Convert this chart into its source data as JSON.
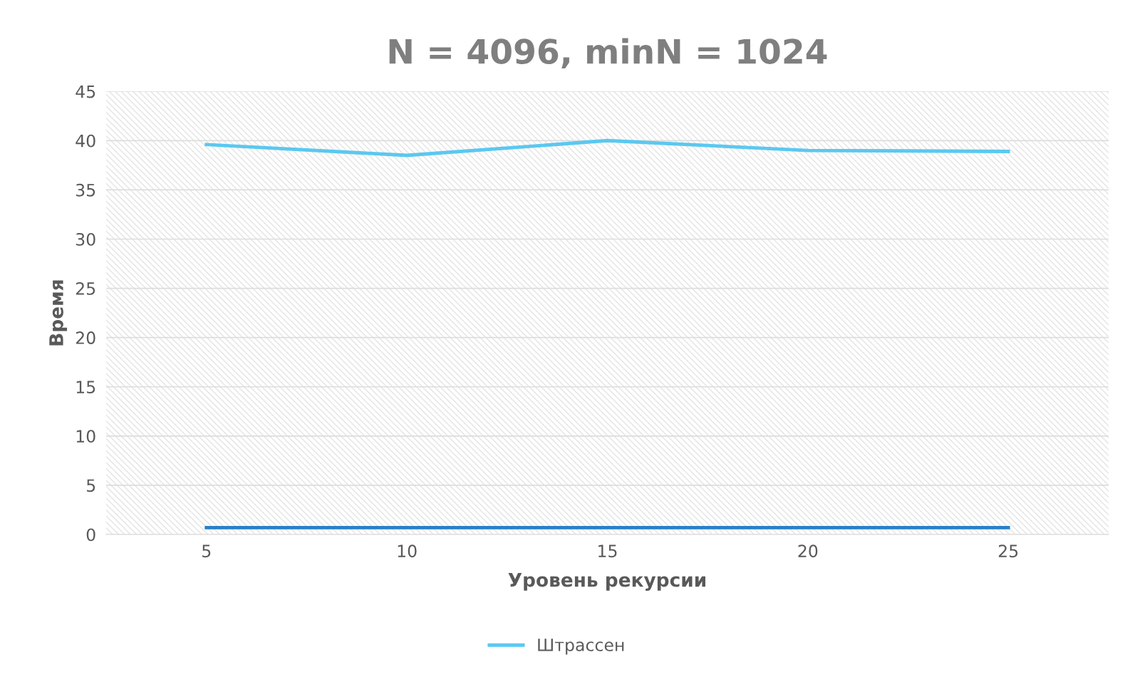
{
  "chart_data": {
    "type": "line",
    "title": "N = 4096, minN = 1024",
    "xlabel": "Уровень рекурсии",
    "ylabel": "Время",
    "categories": [
      "5",
      "10",
      "15",
      "20",
      "25"
    ],
    "series": [
      {
        "name": "Штрассен",
        "color": "#5bc8f0",
        "values": [
          39.6,
          38.5,
          40.0,
          39.0,
          38.9
        ]
      },
      {
        "color": "#2a7fc8",
        "values": [
          0.7,
          0.7,
          0.7,
          0.7,
          0.7
        ]
      }
    ],
    "ylim": [
      0,
      45
    ],
    "yticks": [
      0,
      5,
      10,
      15,
      20,
      25,
      30,
      35,
      40,
      45
    ],
    "grid": "y",
    "legend": "bottom",
    "marker": "none",
    "line_style": "solid"
  }
}
